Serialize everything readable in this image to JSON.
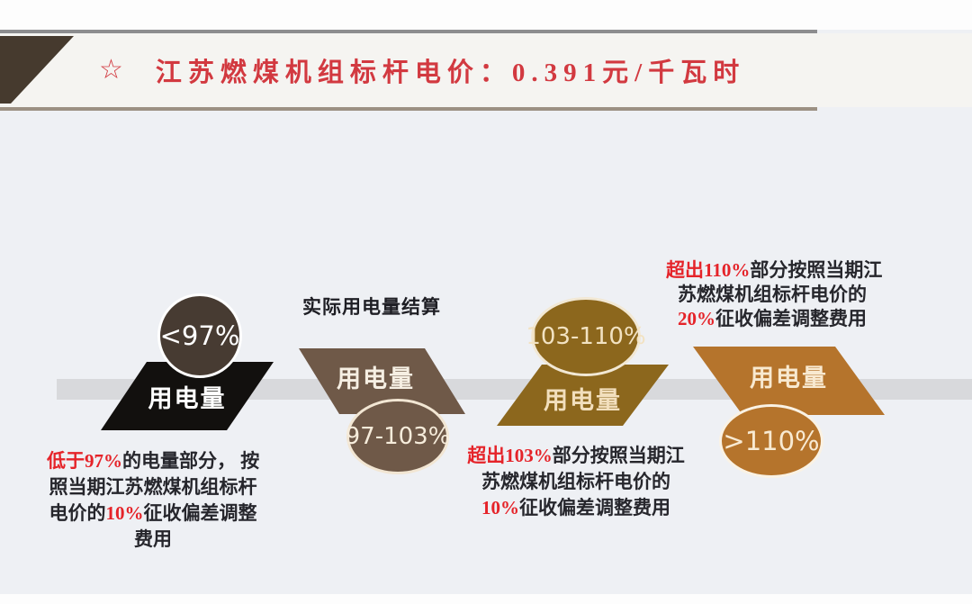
{
  "header": {
    "star_icon": "☆",
    "title": "江苏燃煤机组标杆电价：0.391元/千瓦时"
  },
  "settlement_label": "实际用电量结算",
  "stages": [
    {
      "range": "<97%",
      "label": "用电量"
    },
    {
      "range": "97-103%",
      "label": "用电量"
    },
    {
      "range": "103-110%",
      "label": "用电量"
    },
    {
      "range": ">110%",
      "label": "用电量"
    }
  ],
  "notes": {
    "below_97": {
      "l1_red": "低于97%",
      "l1_rest": "的电量部分，  按",
      "l2": "照当期江苏燃煤机组标杆",
      "l3_pre": "电价的",
      "l3_red": "10%",
      "l3_rest": "征收偏差调整",
      "l4": "费用"
    },
    "above_103": {
      "l1_red": "超出103%",
      "l1_rest": "部分按照当期江",
      "l2": "苏燃煤机组标杆电价的",
      "l3_red": "10%",
      "l3_rest": "征收偏差调整费用"
    },
    "above_110": {
      "l1_red": "超出110%",
      "l1_rest": "部分按照当期江",
      "l2": "苏燃煤机组标杆电价的",
      "l3_red": "20%",
      "l3_rest": "征收偏差调整费用"
    }
  },
  "colors": {
    "header_red": "#d23940",
    "annotation_red": "#e52329",
    "stage1_shape": "#12100e",
    "stage1_badge": "#473b32",
    "stage2_shape": "#6f5948",
    "stage3_shape": "#8c671d",
    "stage4_shape": "#b5742c",
    "band_gray": "#d8d9dc",
    "badge_border_cream": "#f2e6d3",
    "corner_brown": "#463a2e"
  }
}
